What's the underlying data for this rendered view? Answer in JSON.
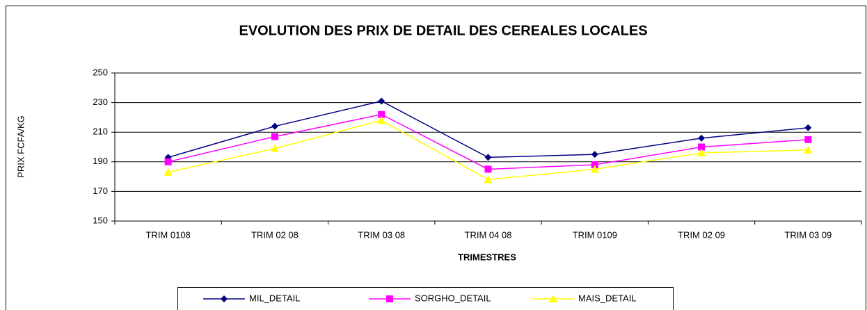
{
  "chart_data": {
    "type": "line",
    "title": "EVOLUTION DES PRIX DE DETAIL DES CEREALES LOCALES",
    "x_label": "TRIMESTRES",
    "y_label": "PRIX FCFA/KG",
    "categories": [
      "TRIM 0108",
      "TRIM 02 08",
      "TRIM 03 08",
      "TRIM 04 08",
      "TRIM 0109",
      "TRIM 02 09",
      "TRIM 03 09"
    ],
    "series": [
      {
        "name": "MIL_DETAIL",
        "color": "#000080",
        "marker": "diamond",
        "values": [
          193,
          214,
          231,
          193,
          195,
          206,
          213
        ]
      },
      {
        "name": "SORGHO_DETAIL",
        "color": "#ff00ff",
        "marker": "square",
        "values": [
          190,
          207,
          222,
          185,
          188,
          200,
          205
        ]
      },
      {
        "name": "MAIS_DETAIL",
        "color": "#ffff00",
        "marker": "triangle",
        "values": [
          183,
          199,
          218,
          178,
          185,
          196,
          198
        ]
      }
    ],
    "ylim": [
      150,
      250
    ],
    "yticks": [
      150,
      170,
      190,
      210,
      230,
      250
    ],
    "grid": true,
    "legend": "bottom"
  }
}
